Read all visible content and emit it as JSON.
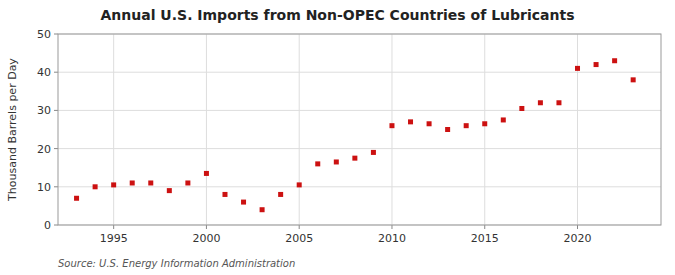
{
  "chart_data": {
    "type": "scatter",
    "title": "Annual U.S. Imports from Non-OPEC Countries of Lubricants",
    "y_label": "Thousand Barrels per Day",
    "annotations": [
      "Source: U.S. Energy Information Administration"
    ],
    "x": [
      1993,
      1994,
      1995,
      1996,
      1997,
      1998,
      1999,
      2000,
      2001,
      2002,
      2003,
      2004,
      2005,
      2006,
      2007,
      2008,
      2009,
      2010,
      2011,
      2012,
      2013,
      2014,
      2015,
      2016,
      2017,
      2018,
      2019,
      2020,
      2021,
      2022,
      2023
    ],
    "values": [
      7.0,
      10.0,
      10.5,
      11.0,
      11.0,
      9.0,
      11.0,
      13.5,
      8.0,
      6.0,
      4.0,
      8.0,
      10.5,
      16.0,
      16.5,
      17.5,
      19.0,
      26.0,
      27.0,
      26.5,
      25.0,
      26.0,
      26.5,
      27.5,
      30.5,
      32.0,
      32.0,
      41.0,
      42.0,
      43.0,
      38.0
    ],
    "color": "#cc1111",
    "marker": "square",
    "xlim": [
      1992.0,
      2024.5
    ],
    "ylim": [
      0,
      50
    ],
    "xticks": [
      1995,
      2000,
      2005,
      2010,
      2015,
      2020
    ],
    "yticks": [
      0,
      10,
      20,
      30,
      40,
      50
    ],
    "grid": true
  }
}
